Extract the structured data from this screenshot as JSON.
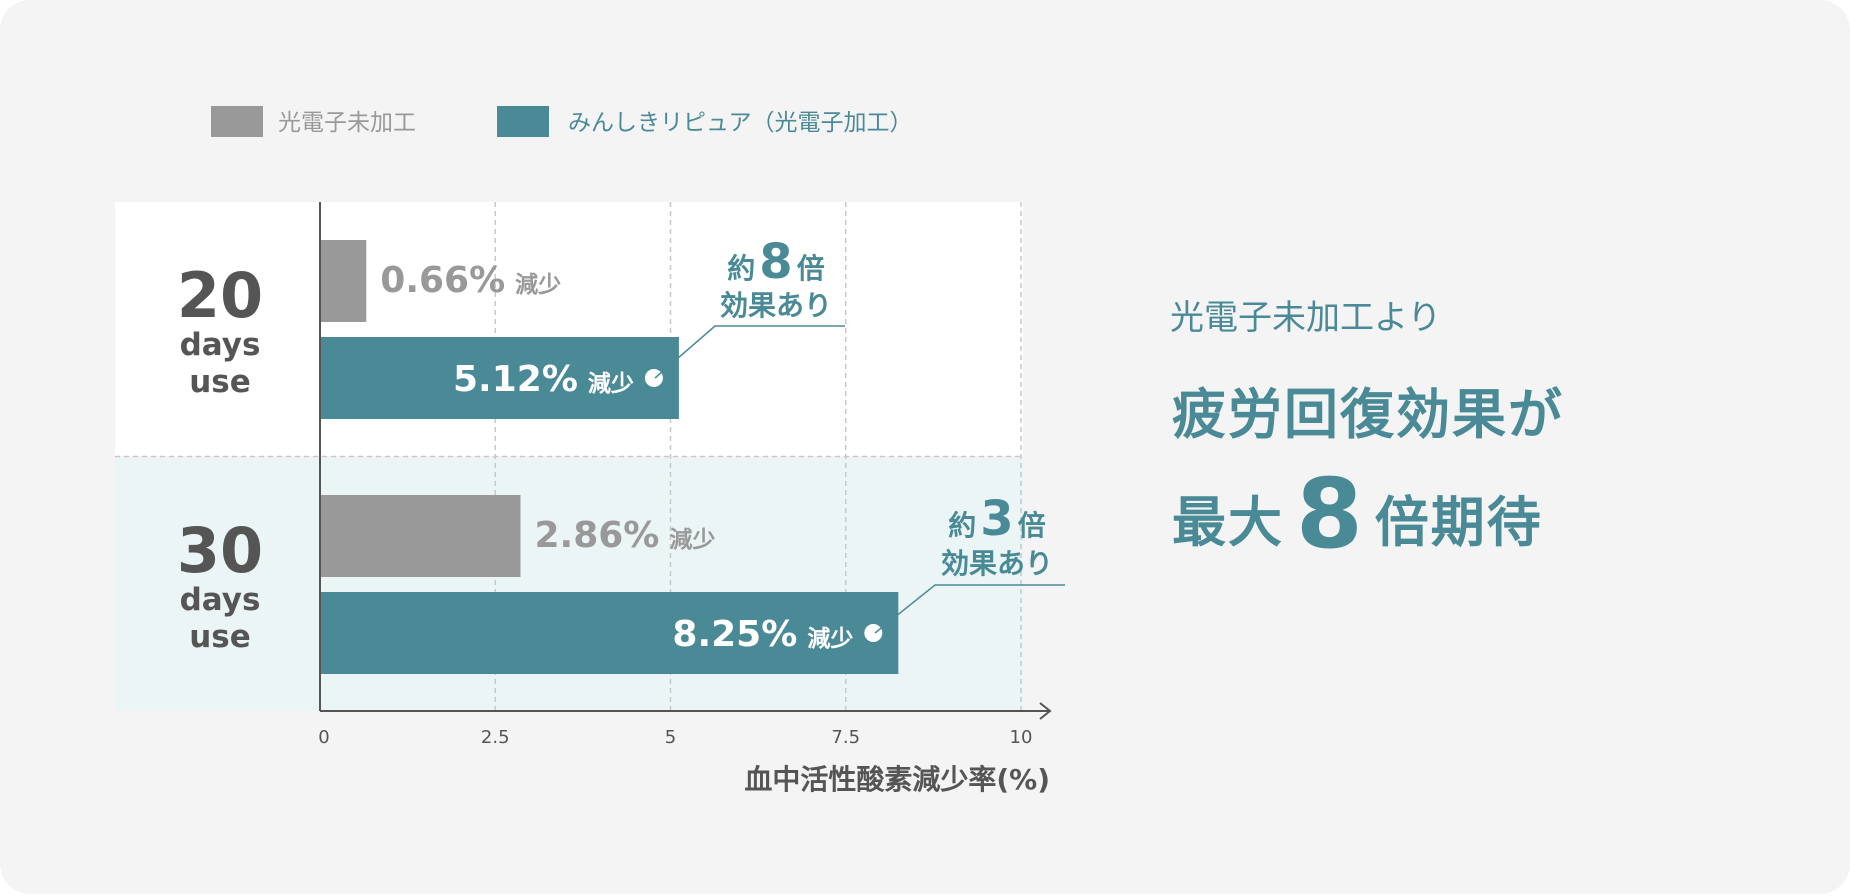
{
  "legend": [
    {
      "label": "光電子未加工",
      "color": "#999999"
    },
    {
      "label": "みんしきリピュア（光電子加工）",
      "color": "#4a8a96"
    }
  ],
  "colors": {
    "accent": "#4a8a96",
    "gray": "#999999",
    "text": "#555555"
  },
  "chart_data": {
    "type": "bar",
    "orientation": "horizontal",
    "groups": [
      {
        "line1": "20",
        "line2": "days",
        "line3": "use"
      },
      {
        "line1": "30",
        "line2": "days",
        "line3": "use"
      }
    ],
    "series": [
      {
        "name": "光電子未加工",
        "values": [
          0.66,
          2.86
        ],
        "labels": [
          "0.66%",
          "2.86%"
        ]
      },
      {
        "name": "みんしきリピュア（光電子加工）",
        "values": [
          5.12,
          8.25
        ],
        "labels": [
          "5.12%",
          "8.25%"
        ]
      }
    ],
    "value_suffix": "減少",
    "xlim": [
      0,
      10
    ],
    "xticks": [
      "0",
      "2.5",
      "5",
      "7.5",
      "10"
    ],
    "xtick_values": [
      0,
      2.5,
      5,
      7.5,
      10
    ],
    "xlabel": "血中活性酸素減少率(%)",
    "grid": true,
    "annotations": [
      {
        "prefix": "約",
        "num": "8",
        "suffix": "倍",
        "line2": "効果あり"
      },
      {
        "prefix": "約",
        "num": "3",
        "suffix": "倍",
        "line2": "効果あり"
      }
    ]
  },
  "headline": {
    "lead": "光電子未加工より",
    "line1": "疲労回復効果が",
    "line2_pre": "最大",
    "line2_num": "8",
    "line2_post": "倍期待"
  }
}
